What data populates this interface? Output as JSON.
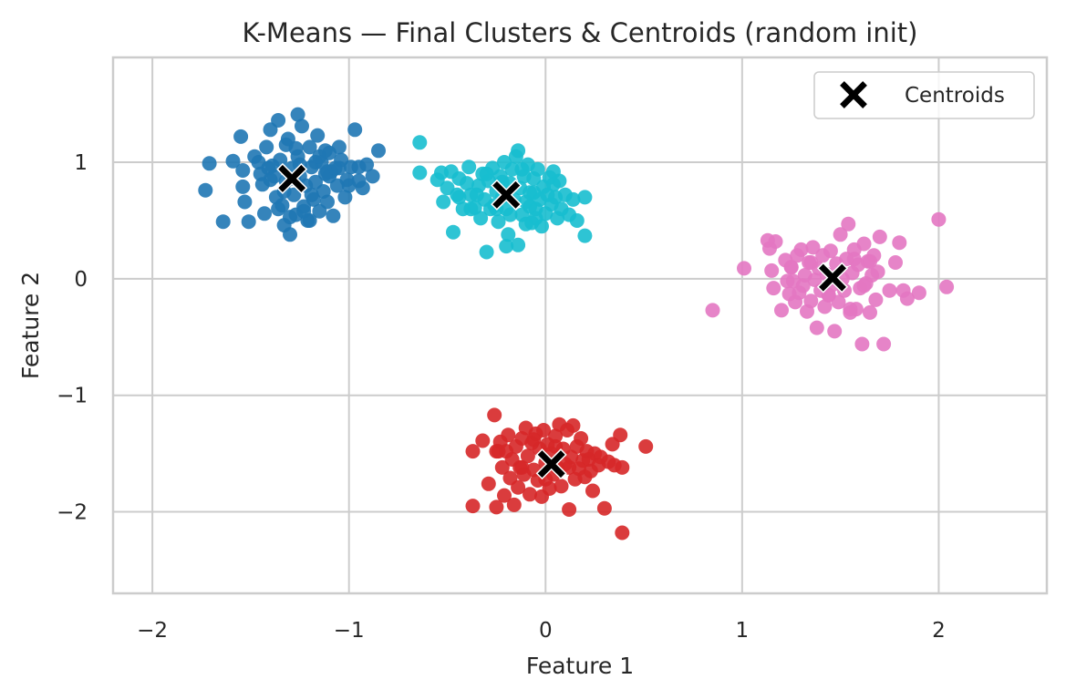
{
  "chart_data": {
    "type": "scatter",
    "title": "K-Means — Final Clusters & Centroids (random init)",
    "xlabel": "Feature 1",
    "ylabel": "Feature 2",
    "xlim": [
      -2.2,
      2.55
    ],
    "ylim": [
      -2.7,
      1.9
    ],
    "x_ticks": [
      -2,
      -1,
      0,
      1,
      2
    ],
    "y_ticks": [
      -2,
      -1,
      0,
      1
    ],
    "x_tick_labels": [
      "−2",
      "−1",
      "0",
      "1",
      "2"
    ],
    "y_tick_labels": [
      "−2",
      "−1",
      "0",
      "1"
    ],
    "grid": true,
    "legend_position": "top-right",
    "legend": [
      "Centroids"
    ],
    "series": [
      {
        "color": "#1f77b4",
        "points": [
          [
            -1.71,
            0.99
          ],
          [
            -1.73,
            0.76
          ],
          [
            -1.64,
            0.49
          ],
          [
            -1.59,
            1.01
          ],
          [
            -1.55,
            1.22
          ],
          [
            -1.54,
            0.93
          ],
          [
            -1.54,
            0.79
          ],
          [
            -1.53,
            0.66
          ],
          [
            -1.51,
            0.49
          ],
          [
            -1.46,
            1.0
          ],
          [
            -1.44,
            0.81
          ],
          [
            -1.43,
            0.56
          ],
          [
            -1.42,
            1.13
          ],
          [
            -1.41,
            0.95
          ],
          [
            -1.4,
            1.28
          ],
          [
            -1.38,
            0.88
          ],
          [
            -1.37,
            0.7
          ],
          [
            -1.36,
            1.36
          ],
          [
            -1.35,
            1.02
          ],
          [
            -1.34,
            0.63
          ],
          [
            -1.33,
            0.46
          ],
          [
            -1.32,
            0.84
          ],
          [
            -1.31,
            1.2
          ],
          [
            -1.3,
            0.38
          ],
          [
            -1.29,
            0.95
          ],
          [
            -1.28,
            0.72
          ],
          [
            -1.27,
            0.55
          ],
          [
            -1.26,
            1.05
          ],
          [
            -1.25,
            0.88
          ],
          [
            -1.24,
            1.31
          ],
          [
            -1.23,
            0.62
          ],
          [
            -1.22,
            0.8
          ],
          [
            -1.21,
            0.5
          ],
          [
            -1.2,
            1.13
          ],
          [
            -1.19,
            0.96
          ],
          [
            -1.18,
            0.68
          ],
          [
            -1.17,
            0.83
          ],
          [
            -1.16,
            1.23
          ],
          [
            -1.15,
            0.58
          ],
          [
            -1.14,
            1.0
          ],
          [
            -1.13,
            0.75
          ],
          [
            -1.12,
            0.9
          ],
          [
            -1.11,
            0.66
          ],
          [
            -1.1,
            1.08
          ],
          [
            -1.09,
            0.92
          ],
          [
            -1.08,
            0.54
          ],
          [
            -1.06,
            0.8
          ],
          [
            -1.05,
            1.13
          ],
          [
            -1.04,
            1.02
          ],
          [
            -1.02,
            0.7
          ],
          [
            -1.01,
            0.85
          ],
          [
            -0.99,
            0.96
          ],
          [
            -0.97,
            1.28
          ],
          [
            -0.95,
            0.84
          ],
          [
            -0.93,
            0.78
          ],
          [
            -0.91,
            0.98
          ],
          [
            -0.88,
            0.88
          ],
          [
            -1.26,
            1.41
          ],
          [
            -1.2,
            0.5
          ],
          [
            -1.17,
            1.0
          ],
          [
            -1.1,
            0.88
          ],
          [
            -1.32,
            1.15
          ],
          [
            -1.27,
            1.12
          ],
          [
            -1.39,
            0.97
          ],
          [
            -1.45,
            0.9
          ],
          [
            -1.48,
            1.05
          ],
          [
            -1.36,
            0.6
          ],
          [
            -1.3,
            0.53
          ],
          [
            -1.23,
            0.58
          ],
          [
            -1.19,
            0.72
          ],
          [
            -1.15,
            1.05
          ],
          [
            -1.11,
            0.92
          ],
          [
            -1.07,
            0.95
          ],
          [
            -0.95,
            0.96
          ],
          [
            -0.85,
            1.1
          ],
          [
            -1.0,
            0.8
          ],
          [
            -1.05,
            0.95
          ],
          [
            -1.28,
            0.86
          ],
          [
            -1.33,
            0.75
          ],
          [
            -1.4,
            0.85
          ],
          [
            -1.25,
            0.98
          ],
          [
            -1.12,
            1.1
          ]
        ]
      },
      {
        "color": "#17becf",
        "points": [
          [
            -0.64,
            1.17
          ],
          [
            -0.64,
            0.91
          ],
          [
            -0.55,
            0.85
          ],
          [
            -0.53,
            0.91
          ],
          [
            -0.52,
            0.66
          ],
          [
            -0.5,
            0.78
          ],
          [
            -0.48,
            0.92
          ],
          [
            -0.47,
            0.4
          ],
          [
            -0.45,
            0.72
          ],
          [
            -0.44,
            0.86
          ],
          [
            -0.42,
            0.6
          ],
          [
            -0.4,
            0.82
          ],
          [
            -0.39,
            0.96
          ],
          [
            -0.38,
            0.72
          ],
          [
            -0.36,
            0.61
          ],
          [
            -0.34,
            0.8
          ],
          [
            -0.33,
            0.52
          ],
          [
            -0.32,
            0.9
          ],
          [
            -0.31,
            0.68
          ],
          [
            -0.3,
            0.23
          ],
          [
            -0.29,
            0.84
          ],
          [
            -0.27,
            0.95
          ],
          [
            -0.26,
            0.63
          ],
          [
            -0.25,
            0.75
          ],
          [
            -0.24,
            0.49
          ],
          [
            -0.23,
            0.88
          ],
          [
            -0.22,
            0.7
          ],
          [
            -0.21,
            1.0
          ],
          [
            -0.2,
            0.6
          ],
          [
            -0.19,
            0.38
          ],
          [
            -0.18,
            0.82
          ],
          [
            -0.17,
            0.94
          ],
          [
            -0.16,
            0.68
          ],
          [
            -0.15,
            1.05
          ],
          [
            -0.14,
            1.1
          ],
          [
            -0.13,
            0.78
          ],
          [
            -0.12,
            0.55
          ],
          [
            -0.11,
            0.88
          ],
          [
            -0.1,
            0.66
          ],
          [
            -0.09,
            0.98
          ],
          [
            -0.08,
            0.74
          ],
          [
            -0.07,
            0.48
          ],
          [
            -0.06,
            0.86
          ],
          [
            -0.05,
            0.6
          ],
          [
            -0.04,
            0.94
          ],
          [
            -0.03,
            0.68
          ],
          [
            -0.02,
            0.45
          ],
          [
            -0.01,
            0.79
          ],
          [
            0.0,
            0.56
          ],
          [
            0.01,
            0.72
          ],
          [
            0.02,
            0.87
          ],
          [
            0.03,
            0.64
          ],
          [
            0.04,
            0.92
          ],
          [
            0.05,
            0.7
          ],
          [
            0.06,
            0.52
          ],
          [
            0.07,
            0.84
          ],
          [
            0.08,
            0.6
          ],
          [
            0.1,
            0.72
          ],
          [
            0.12,
            0.55
          ],
          [
            0.14,
            0.68
          ],
          [
            0.16,
            0.5
          ],
          [
            0.2,
            0.7
          ],
          [
            0.2,
            0.37
          ],
          [
            -0.2,
            0.28
          ],
          [
            -0.14,
            0.29
          ],
          [
            -0.38,
            0.6
          ],
          [
            -0.05,
            0.52
          ],
          [
            -0.1,
            0.47
          ],
          [
            -0.25,
            0.6
          ],
          [
            -0.3,
            0.9
          ],
          [
            -0.12,
            0.94
          ],
          [
            -0.06,
            0.74
          ],
          [
            0.04,
            0.81
          ],
          [
            -0.22,
            0.83
          ],
          [
            -0.28,
            0.6
          ],
          [
            -0.35,
            0.72
          ],
          [
            -0.44,
            0.7
          ],
          [
            -0.18,
            0.55
          ],
          [
            -0.08,
            0.62
          ]
        ]
      },
      {
        "color": "#e377c2",
        "points": [
          [
            0.85,
            -0.27
          ],
          [
            1.01,
            0.09
          ],
          [
            1.13,
            0.33
          ],
          [
            1.14,
            0.26
          ],
          [
            1.15,
            0.07
          ],
          [
            1.16,
            -0.08
          ],
          [
            1.17,
            0.32
          ],
          [
            1.2,
            -0.27
          ],
          [
            1.22,
            0.16
          ],
          [
            1.23,
            -0.02
          ],
          [
            1.24,
            -0.13
          ],
          [
            1.25,
            0.1
          ],
          [
            1.26,
            -0.02
          ],
          [
            1.27,
            -0.2
          ],
          [
            1.28,
            0.2
          ],
          [
            1.29,
            -0.12
          ],
          [
            1.3,
            0.25
          ],
          [
            1.31,
            -0.06
          ],
          [
            1.32,
            0.03
          ],
          [
            1.33,
            -0.28
          ],
          [
            1.34,
            0.14
          ],
          [
            1.35,
            -0.19
          ],
          [
            1.36,
            0.27
          ],
          [
            1.37,
            -0.01
          ],
          [
            1.38,
            -0.42
          ],
          [
            1.39,
            0.09
          ],
          [
            1.4,
            -0.1
          ],
          [
            1.41,
            0.2
          ],
          [
            1.42,
            -0.24
          ],
          [
            1.43,
            0.04
          ],
          [
            1.44,
            -0.14
          ],
          [
            1.45,
            0.24
          ],
          [
            1.46,
            -0.05
          ],
          [
            1.47,
            -0.45
          ],
          [
            1.48,
            0.13
          ],
          [
            1.49,
            -0.2
          ],
          [
            1.5,
            0.38
          ],
          [
            1.51,
            0.0
          ],
          [
            1.52,
            -0.1
          ],
          [
            1.53,
            0.17
          ],
          [
            1.54,
            0.47
          ],
          [
            1.55,
            -0.29
          ],
          [
            1.56,
            0.05
          ],
          [
            1.57,
            0.25
          ],
          [
            1.58,
            -0.26
          ],
          [
            1.59,
            0.12
          ],
          [
            1.6,
            -0.08
          ],
          [
            1.61,
            -0.56
          ],
          [
            1.62,
            0.3
          ],
          [
            1.63,
            -0.04
          ],
          [
            1.64,
            0.15
          ],
          [
            1.65,
            -0.29
          ],
          [
            1.66,
            0.03
          ],
          [
            1.67,
            0.2
          ],
          [
            1.68,
            -0.18
          ],
          [
            1.69,
            0.06
          ],
          [
            1.7,
            0.36
          ],
          [
            1.72,
            -0.56
          ],
          [
            1.75,
            -0.1
          ],
          [
            1.78,
            0.14
          ],
          [
            1.8,
            0.31
          ],
          [
            1.82,
            -0.1
          ],
          [
            1.84,
            -0.17
          ],
          [
            1.9,
            -0.12
          ],
          [
            2.0,
            0.51
          ],
          [
            2.04,
            -0.07
          ],
          [
            1.57,
            0.17
          ],
          [
            1.44,
            -0.14
          ],
          [
            1.35,
            0.14
          ],
          [
            1.25,
            0.1
          ],
          [
            1.65,
            0.15
          ],
          [
            1.55,
            -0.26
          ],
          [
            1.62,
            -0.06
          ]
        ]
      },
      {
        "color": "#d62728",
        "points": [
          [
            -0.37,
            -1.48
          ],
          [
            -0.37,
            -1.95
          ],
          [
            -0.32,
            -1.39
          ],
          [
            -0.29,
            -1.76
          ],
          [
            -0.26,
            -1.17
          ],
          [
            -0.25,
            -1.48
          ],
          [
            -0.25,
            -1.96
          ],
          [
            -0.23,
            -1.4
          ],
          [
            -0.22,
            -1.62
          ],
          [
            -0.21,
            -1.86
          ],
          [
            -0.2,
            -1.48
          ],
          [
            -0.19,
            -1.34
          ],
          [
            -0.18,
            -1.71
          ],
          [
            -0.17,
            -1.55
          ],
          [
            -0.16,
            -1.94
          ],
          [
            -0.15,
            -1.44
          ],
          [
            -0.14,
            -1.79
          ],
          [
            -0.13,
            -1.62
          ],
          [
            -0.12,
            -1.37
          ],
          [
            -0.11,
            -1.68
          ],
          [
            -0.1,
            -1.28
          ],
          [
            -0.09,
            -1.52
          ],
          [
            -0.08,
            -1.85
          ],
          [
            -0.07,
            -1.41
          ],
          [
            -0.06,
            -1.64
          ],
          [
            -0.05,
            -1.33
          ],
          [
            -0.04,
            -1.73
          ],
          [
            -0.03,
            -1.46
          ],
          [
            -0.02,
            -1.87
          ],
          [
            -0.01,
            -1.3
          ],
          [
            0.0,
            -1.58
          ],
          [
            0.01,
            -1.42
          ],
          [
            0.02,
            -1.8
          ],
          [
            0.03,
            -1.5
          ],
          [
            0.04,
            -1.68
          ],
          [
            0.05,
            -1.35
          ],
          [
            0.06,
            -1.62
          ],
          [
            0.07,
            -1.25
          ],
          [
            0.08,
            -1.78
          ],
          [
            0.09,
            -1.46
          ],
          [
            0.1,
            -1.59
          ],
          [
            0.11,
            -1.3
          ],
          [
            0.12,
            -1.98
          ],
          [
            0.13,
            -1.53
          ],
          [
            0.14,
            -1.26
          ],
          [
            0.15,
            -1.72
          ],
          [
            0.16,
            -1.44
          ],
          [
            0.17,
            -1.63
          ],
          [
            0.18,
            -1.37
          ],
          [
            0.19,
            -1.56
          ],
          [
            0.2,
            -1.7
          ],
          [
            0.21,
            -1.48
          ],
          [
            0.23,
            -1.65
          ],
          [
            0.24,
            -1.82
          ],
          [
            0.25,
            -1.5
          ],
          [
            0.27,
            -1.6
          ],
          [
            0.28,
            -1.53
          ],
          [
            0.3,
            -1.97
          ],
          [
            0.32,
            -1.57
          ],
          [
            0.34,
            -1.42
          ],
          [
            0.35,
            -1.6
          ],
          [
            0.38,
            -1.34
          ],
          [
            0.39,
            -1.62
          ],
          [
            0.39,
            -2.18
          ],
          [
            0.51,
            -1.44
          ],
          [
            -0.24,
            -1.48
          ],
          [
            -0.12,
            -1.62
          ],
          [
            0.0,
            -1.72
          ],
          [
            0.05,
            -1.44
          ],
          [
            -0.06,
            -1.38
          ],
          [
            0.12,
            -1.62
          ],
          [
            0.22,
            -1.55
          ]
        ]
      }
    ],
    "centroids": [
      [
        -1.29,
        0.86
      ],
      [
        -0.2,
        0.72
      ],
      [
        1.46,
        0.01
      ],
      [
        0.03,
        -1.59
      ]
    ]
  }
}
